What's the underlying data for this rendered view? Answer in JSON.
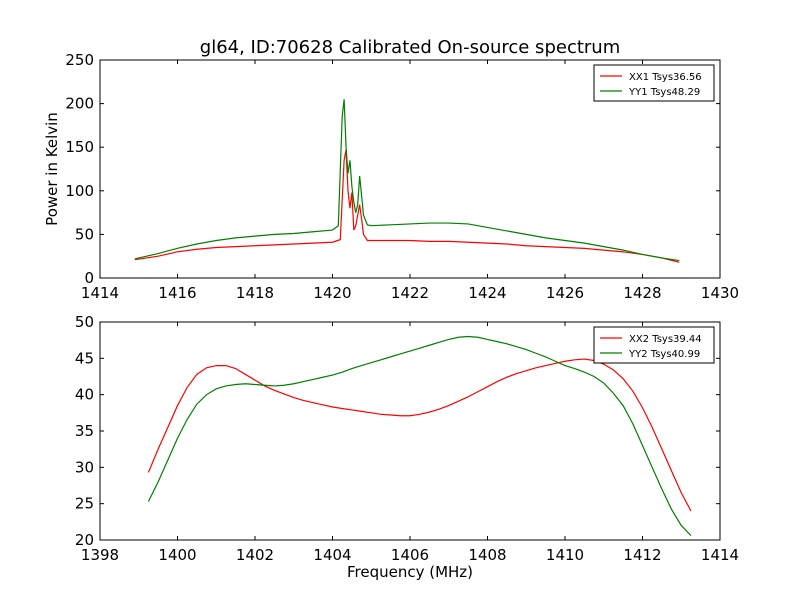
{
  "figure_title": "gl64, ID:70628 Calibrated On-source spectrum",
  "chart_data": [
    {
      "type": "line",
      "name": "top-panel",
      "ylabel": "Power in Kelvin",
      "xlabel": "",
      "xlim": [
        1414,
        1430
      ],
      "ylim": [
        0,
        250
      ],
      "xticks": [
        1414,
        1416,
        1418,
        1420,
        1422,
        1424,
        1426,
        1428,
        1430
      ],
      "yticks": [
        0,
        50,
        100,
        150,
        200,
        250
      ],
      "legend_position": "top-right",
      "series": [
        {
          "name": "XX1 Tsys36.56",
          "color": "#ff0000",
          "x": [
            1414.9,
            1415.5,
            1416.0,
            1416.5,
            1417.0,
            1417.5,
            1418.0,
            1418.5,
            1419.0,
            1419.5,
            1420.0,
            1420.2,
            1420.3,
            1420.35,
            1420.4,
            1420.45,
            1420.5,
            1420.55,
            1420.6,
            1420.7,
            1420.75,
            1420.8,
            1420.9,
            1421.0,
            1421.5,
            1422.0,
            1422.5,
            1423.0,
            1423.5,
            1424.0,
            1424.5,
            1425.0,
            1425.5,
            1426.0,
            1426.5,
            1427.0,
            1427.5,
            1428.0,
            1428.5,
            1428.95
          ],
          "values": [
            21,
            25,
            30,
            33,
            35,
            36,
            37,
            38,
            39,
            40,
            41,
            44,
            135,
            147,
            100,
            80,
            98,
            55,
            60,
            84,
            68,
            50,
            43,
            43,
            43,
            43,
            42,
            42,
            41,
            40,
            39,
            37,
            36,
            35,
            34,
            32,
            30,
            27,
            23,
            18
          ]
        },
        {
          "name": "YY1 Tsys48.29",
          "color": "#008000",
          "x": [
            1414.9,
            1415.5,
            1416.0,
            1416.5,
            1417.0,
            1417.5,
            1418.0,
            1418.5,
            1419.0,
            1419.5,
            1420.0,
            1420.15,
            1420.25,
            1420.3,
            1420.35,
            1420.4,
            1420.45,
            1420.5,
            1420.55,
            1420.6,
            1420.65,
            1420.7,
            1420.75,
            1420.8,
            1420.9,
            1421.0,
            1421.5,
            1422.0,
            1422.5,
            1423.0,
            1423.5,
            1424.0,
            1424.5,
            1425.0,
            1425.5,
            1426.0,
            1426.5,
            1427.0,
            1427.5,
            1428.0,
            1428.5,
            1428.95
          ],
          "values": [
            22,
            28,
            34,
            39,
            43,
            46,
            48,
            50,
            51,
            53,
            55,
            60,
            185,
            205,
            150,
            120,
            135,
            105,
            87,
            75,
            84,
            117,
            95,
            72,
            61,
            60,
            61,
            62,
            63,
            63,
            62,
            58,
            54,
            50,
            46,
            43,
            40,
            36,
            32,
            27,
            23,
            20
          ]
        }
      ]
    },
    {
      "type": "line",
      "name": "bottom-panel",
      "ylabel": "",
      "xlabel": "Frequency (MHz)",
      "xlim": [
        1398,
        1414
      ],
      "ylim": [
        20,
        50
      ],
      "xticks": [
        1398,
        1400,
        1402,
        1404,
        1406,
        1408,
        1410,
        1412,
        1414
      ],
      "yticks": [
        20,
        25,
        30,
        35,
        40,
        45,
        50
      ],
      "legend_position": "top-right",
      "series": [
        {
          "name": "XX2 Tsys39.44",
          "color": "#ff0000",
          "x": [
            1399.25,
            1399.5,
            1399.75,
            1400.0,
            1400.25,
            1400.5,
            1400.75,
            1401.0,
            1401.25,
            1401.5,
            1401.75,
            1402.0,
            1402.25,
            1402.5,
            1402.75,
            1403.0,
            1403.25,
            1403.5,
            1403.75,
            1404.0,
            1404.25,
            1404.5,
            1404.75,
            1405.0,
            1405.25,
            1405.5,
            1405.75,
            1406.0,
            1406.25,
            1406.5,
            1406.75,
            1407.0,
            1407.25,
            1407.5,
            1407.75,
            1408.0,
            1408.25,
            1408.5,
            1408.75,
            1409.0,
            1409.25,
            1409.5,
            1409.75,
            1410.0,
            1410.25,
            1410.5,
            1410.75,
            1411.0,
            1411.25,
            1411.5,
            1411.75,
            1412.0,
            1412.25,
            1412.5,
            1412.75,
            1413.0,
            1413.25
          ],
          "values": [
            29.3,
            32.5,
            35.5,
            38.5,
            41.0,
            42.8,
            43.7,
            44.0,
            44.0,
            43.6,
            42.8,
            42.0,
            41.2,
            40.6,
            40.1,
            39.6,
            39.2,
            38.9,
            38.6,
            38.3,
            38.1,
            37.9,
            37.7,
            37.5,
            37.3,
            37.2,
            37.1,
            37.1,
            37.3,
            37.6,
            38.0,
            38.5,
            39.1,
            39.7,
            40.4,
            41.1,
            41.8,
            42.4,
            42.9,
            43.3,
            43.7,
            44.0,
            44.3,
            44.6,
            44.8,
            44.9,
            44.7,
            44.2,
            43.4,
            42.2,
            40.5,
            38.2,
            35.5,
            32.5,
            29.5,
            26.5,
            24.0
          ]
        },
        {
          "name": "YY2 Tsys40.99",
          "color": "#008000",
          "x": [
            1399.25,
            1399.5,
            1399.75,
            1400.0,
            1400.25,
            1400.5,
            1400.75,
            1401.0,
            1401.25,
            1401.5,
            1401.75,
            1402.0,
            1402.25,
            1402.5,
            1402.75,
            1403.0,
            1403.25,
            1403.5,
            1403.75,
            1404.0,
            1404.25,
            1404.5,
            1404.75,
            1405.0,
            1405.25,
            1405.5,
            1405.75,
            1406.0,
            1406.25,
            1406.5,
            1406.75,
            1407.0,
            1407.25,
            1407.5,
            1407.75,
            1408.0,
            1408.25,
            1408.5,
            1408.75,
            1409.0,
            1409.25,
            1409.5,
            1409.75,
            1410.0,
            1410.25,
            1410.5,
            1410.75,
            1411.0,
            1411.25,
            1411.5,
            1411.75,
            1412.0,
            1412.25,
            1412.5,
            1412.75,
            1413.0,
            1413.25
          ],
          "values": [
            25.3,
            28.0,
            31.0,
            34.0,
            36.6,
            38.7,
            40.0,
            40.8,
            41.2,
            41.4,
            41.5,
            41.4,
            41.3,
            41.2,
            41.3,
            41.5,
            41.8,
            42.1,
            42.4,
            42.7,
            43.1,
            43.6,
            44.0,
            44.4,
            44.8,
            45.2,
            45.6,
            46.0,
            46.4,
            46.8,
            47.2,
            47.6,
            47.9,
            48.0,
            47.9,
            47.6,
            47.3,
            47.0,
            46.6,
            46.2,
            45.7,
            45.2,
            44.6,
            44.0,
            43.6,
            43.1,
            42.5,
            41.6,
            40.2,
            38.5,
            36.0,
            33.0,
            30.0,
            27.0,
            24.2,
            22.0,
            20.6
          ]
        }
      ]
    }
  ]
}
